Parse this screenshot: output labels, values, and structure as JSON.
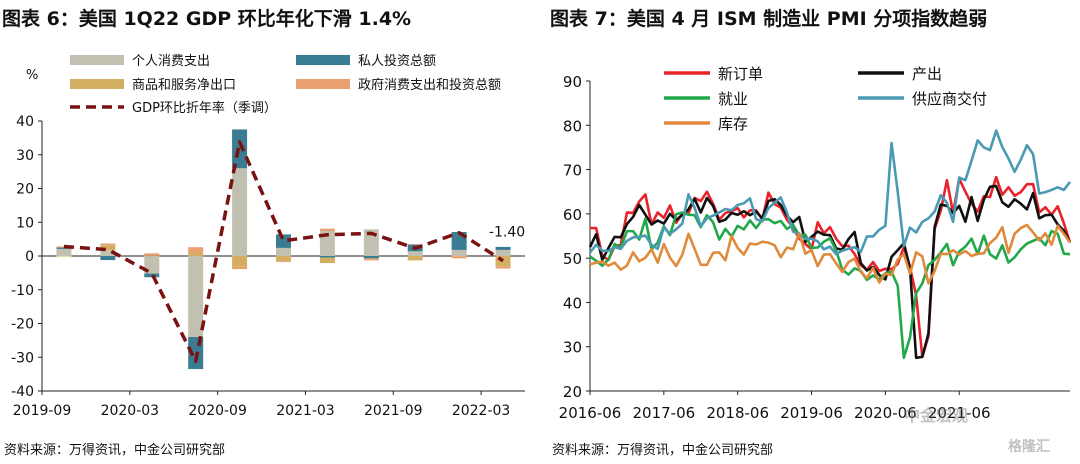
{
  "charts": [
    {
      "title": "图表 6：美国 1Q22 GDP 环比年化下滑 1.4%",
      "source": "资料来源：万得资讯，中金公司研究部"
    },
    {
      "title": "图表 7：美国 4 月 ISM 制造业 PMI 分项指数趋弱",
      "source": "资料来源：万得资讯，中金公司研究部"
    }
  ],
  "watermarks": {
    "wechat": "中金宏观",
    "corner": "格隆汇"
  },
  "chart_data": [
    {
      "type": "bar",
      "stacked": true,
      "ylabel": "%",
      "ylim": [
        -40,
        40
      ],
      "yticks": [
        -40,
        -30,
        -20,
        -10,
        0,
        10,
        20,
        30,
        40
      ],
      "categories": [
        "2019Q3",
        "2019Q4",
        "2020Q1",
        "2020Q2",
        "2020Q3",
        "2020Q4",
        "2021Q1",
        "2021Q2",
        "2021Q3",
        "2021Q4",
        "2022Q1"
      ],
      "xtick_labels": [
        "2019-09",
        "2020-03",
        "2020-09",
        "2021-03",
        "2021-09",
        "2022-03"
      ],
      "xtick_categories": [
        "2019Q3",
        "2020Q1",
        "2020Q3",
        "2021Q1",
        "2021Q3",
        "2022Q1"
      ],
      "legend_placement": "top",
      "series": [
        {
          "name": "个人消费支出",
          "color": "#c2c0b0",
          "values": [
            2.1,
            1.7,
            -5.2,
            -24.0,
            26.0,
            2.4,
            7.4,
            7.9,
            1.4,
            1.8,
            1.8
          ]
        },
        {
          "name": "私人投资总额",
          "color": "#3a7d93",
          "values": [
            0.4,
            -1.2,
            -1.1,
            -9.5,
            11.5,
            4.0,
            -0.5,
            -0.7,
            2.0,
            5.3,
            0.9
          ]
        },
        {
          "name": "商品和服务净出口",
          "color": "#d4ae62",
          "values": [
            -0.1,
            1.5,
            0.1,
            0.9,
            -3.2,
            -1.6,
            -1.6,
            -0.2,
            -1.3,
            -0.2,
            -3.2
          ]
        },
        {
          "name": "政府消费支出和投资总额",
          "color": "#e8a070",
          "values": [
            0.3,
            0.5,
            0.7,
            1.7,
            -0.7,
            -0.2,
            0.7,
            -0.4,
            0.1,
            -0.5,
            -0.5
          ]
        }
      ],
      "line": {
        "name": "GDP环比折年率（季调）",
        "color": "#7a1212",
        "values": [
          2.8,
          1.9,
          -5.1,
          -31.2,
          33.8,
          4.5,
          6.3,
          6.7,
          2.3,
          6.9,
          -1.4
        ]
      },
      "annotations": [
        {
          "category": "2022Q1",
          "text": "-1.40"
        }
      ]
    },
    {
      "type": "line",
      "ylim": [
        20,
        90
      ],
      "yticks": [
        20,
        30,
        40,
        50,
        60,
        70,
        80,
        90
      ],
      "x_start": "2016-06",
      "x_step": "month",
      "xtick_labels": [
        "2016-06",
        "2017-06",
        "2018-06",
        "2019-06",
        "2020-06",
        "2021-06"
      ],
      "legend_placement": "top",
      "series": [
        {
          "name": "新订单",
          "color": "#e8232a",
          "values": [
            56.8,
            56.8,
            50.5,
            49.6,
            52.7,
            53.0,
            60.3,
            60.2,
            62.8,
            64.4,
            57.6,
            60.3,
            59.1,
            61.9,
            58.0,
            60.0,
            60.1,
            63.6,
            62.9,
            65.0,
            62.3,
            58.7,
            60.2,
            60.6,
            61.3,
            59.2,
            60.8,
            60.8,
            58.7,
            64.8,
            62.2,
            61.4,
            58.7,
            56.9,
            54.4,
            53.2,
            52.0,
            58.1,
            55.6,
            57.0,
            54.4,
            52.7,
            52.8,
            50.9,
            48.4,
            47.4,
            49.1,
            47.1,
            47.6,
            47.5,
            48.7,
            52.5,
            48.0,
            41.5,
            27.7,
            32.4,
            56.6,
            60.7,
            67.6,
            60.2,
            67.9,
            65.0,
            62.3,
            60.5,
            64.0,
            63.8,
            68.3,
            64.3,
            66.0,
            64.1,
            64.9,
            66.7,
            66.7,
            60.3,
            61.5,
            59.8,
            61.7,
            57.9,
            53.5
          ]
        },
        {
          "name": "产出",
          "color": "#111111",
          "values": [
            52.5,
            55.4,
            49.6,
            52.3,
            54.8,
            54.7,
            57.7,
            59.3,
            62.0,
            59.8,
            57.6,
            58.5,
            57.8,
            60.0,
            58.6,
            59.8,
            61.0,
            63.4,
            60.3,
            63.6,
            61.8,
            58.2,
            58.7,
            60.2,
            59.8,
            60.6,
            59.7,
            60.5,
            59.0,
            62.9,
            63.3,
            62.0,
            59.6,
            58.1,
            59.3,
            53.7,
            54.8,
            56.0,
            55.3,
            55.2,
            52.2,
            51.9,
            54.3,
            55.9,
            48.9,
            47.2,
            48.0,
            46.2,
            45.2,
            50.3,
            51.8,
            53.4,
            47.7,
            27.5,
            27.7,
            33.0,
            57.0,
            62.1,
            61.8,
            60.2,
            61.8,
            58.2,
            63.8,
            58.4,
            63.2,
            66.1,
            66.3,
            62.6,
            61.6,
            63.3,
            62.3,
            61.0,
            64.7,
            59.0,
            59.7,
            59.8,
            57.6,
            56.2,
            53.6
          ]
        },
        {
          "name": "就业",
          "color": "#22a84a",
          "values": [
            50.4,
            49.4,
            48.3,
            49.7,
            53.2,
            52.3,
            56.1,
            56.1,
            54.2,
            58.9,
            52.0,
            53.5,
            57.2,
            55.2,
            59.9,
            60.3,
            59.8,
            59.7,
            57.0,
            59.7,
            58.1,
            54.2,
            56.6,
            54.9,
            57.3,
            56.5,
            58.5,
            56.8,
            58.7,
            58.8,
            57.9,
            58.4,
            56.6,
            57.5,
            55.2,
            55.3,
            52.3,
            52.4,
            53.7,
            54.5,
            51.7,
            47.4,
            46.3,
            47.7,
            47.1,
            45.1,
            46.1,
            45.2,
            46.6,
            46.9,
            43.8,
            27.5,
            32.1,
            42.1,
            44.3,
            48.4,
            49.6,
            51.3,
            53.2,
            48.4,
            51.5,
            52.6,
            54.4,
            50.9,
            55.1,
            50.9,
            49.9,
            52.9,
            49.0,
            50.2,
            52.0,
            53.3,
            53.9,
            54.5,
            52.9,
            56.1,
            55.5,
            51.0,
            50.9
          ]
        },
        {
          "name": "供应商交付",
          "color": "#4b9ab4",
          "values": [
            51.3,
            53.0,
            51.7,
            51.6,
            52.5,
            52.1,
            53.9,
            54.7,
            54.8,
            55.1,
            53.0,
            52.1,
            57.0,
            55.5,
            56.5,
            57.8,
            64.4,
            61.4,
            57.2,
            59.0,
            59.6,
            60.3,
            61.1,
            60.8,
            62.0,
            62.4,
            63.5,
            58.8,
            58.3,
            61.3,
            62.5,
            63.7,
            60.3,
            56.0,
            55.4,
            54.3,
            54.4,
            53.8,
            52.0,
            52.6,
            50.9,
            51.7,
            52.1,
            52.5,
            51.4,
            54.9,
            54.9,
            56.4,
            57.3,
            76.0,
            65.0,
            52.7,
            56.9,
            55.8,
            58.2,
            59.0,
            60.5,
            64.2,
            62.5,
            58.2,
            68.2,
            67.6,
            72.0,
            76.6,
            75.0,
            74.4,
            78.8,
            75.1,
            72.5,
            69.5,
            72.2,
            75.5,
            73.5,
            64.6,
            64.9,
            65.4,
            66.0,
            65.4,
            67.2
          ]
        },
        {
          "name": "库存",
          "color": "#e08a3c",
          "values": [
            48.6,
            49.0,
            49.2,
            48.3,
            49.0,
            47.4,
            48.3,
            51.3,
            49.3,
            50.1,
            52.0,
            49.0,
            53.2,
            50.1,
            48.2,
            50.8,
            55.5,
            52.1,
            48.5,
            48.5,
            51.2,
            51.3,
            49.5,
            55.0,
            52.3,
            50.8,
            53.3,
            53.1,
            53.7,
            53.5,
            52.9,
            50.2,
            52.4,
            52.0,
            55.6,
            51.0,
            51.8,
            48.2,
            50.8,
            50.9,
            48.8,
            46.9,
            49.1,
            49.9,
            46.9,
            45.5,
            47.8,
            44.5,
            46.5,
            46.2,
            49.7,
            50.9,
            46.5,
            51.3,
            50.4,
            44.3,
            47.1,
            51.0,
            50.9,
            51.8,
            50.8,
            51.6,
            50.5,
            51.0,
            51.1,
            53.4,
            54.6,
            57.0,
            51.2,
            55.5,
            56.8,
            57.5,
            55.8,
            54.0,
            55.6,
            53.0,
            57.3,
            55.5,
            53.5
          ]
        }
      ]
    }
  ]
}
